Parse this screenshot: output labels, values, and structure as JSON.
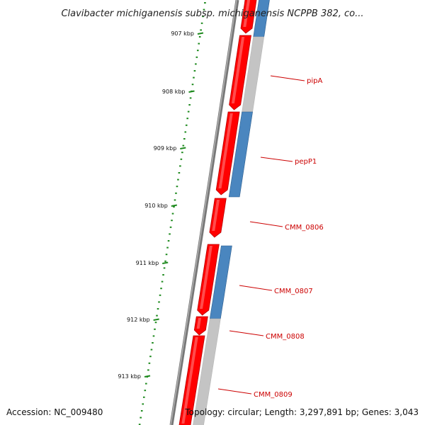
{
  "title": "Clavibacter michiganensis subsp. michiganensis NCPPB 382, co...",
  "accession": "Accession: NC_009480",
  "topology": "Topology: circular; Length: 3,297,891 bp; Genes: 3,043",
  "colors": {
    "forward_gene": "#ff0000",
    "forward_gene_highlight": "#ff8a8a",
    "forward_gene_shadow": "#b80000",
    "reverse_gene": "#4a86bf",
    "reverse_gene_shadow": "#2f5f8f",
    "reverse_intergenic": "#c4c4c4",
    "backbone": "#707070",
    "tick": "#1e8a1e",
    "gene_label": "#cc0000"
  },
  "kbp_ticks": [
    "907 kbp",
    "908 kbp",
    "909 kbp",
    "910 kbp",
    "911 kbp",
    "912 kbp",
    "913 kbp"
  ],
  "gene_labels": [
    "pipA",
    "pepP1",
    "CMM_0806",
    "CMM_0807",
    "CMM_0808",
    "CMM_0809"
  ]
}
